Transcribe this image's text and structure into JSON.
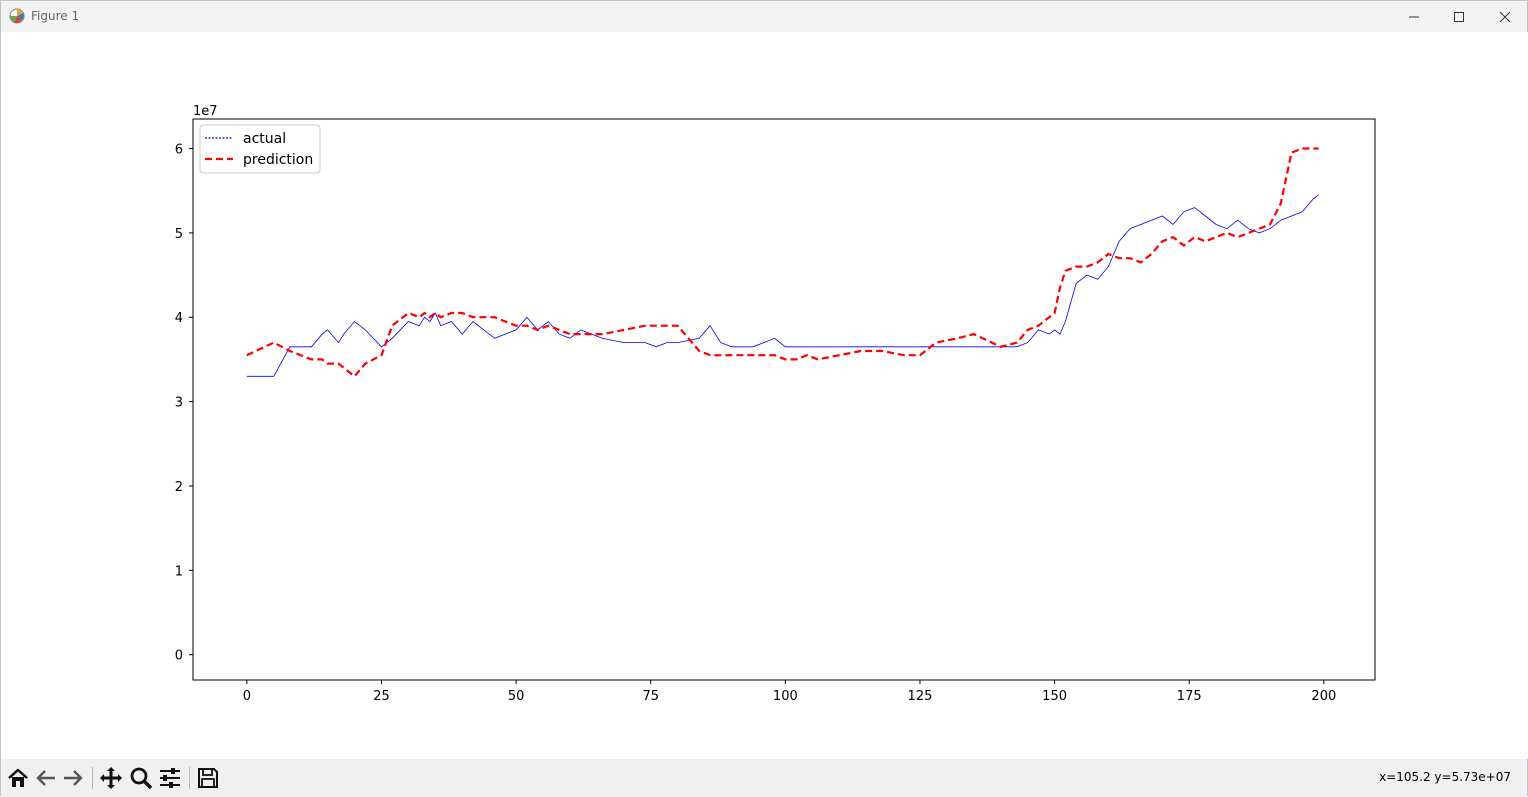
{
  "window": {
    "title": "Figure 1"
  },
  "toolbar": {
    "buttons": [
      "home-icon",
      "back-icon",
      "forward-icon",
      "pan-icon",
      "zoom-icon",
      "configure-subplots-icon",
      "save-icon"
    ],
    "coords": "x=105.2 y=5.73e+07"
  },
  "chart_data": {
    "type": "line",
    "title": "",
    "xlabel": "",
    "ylabel": "",
    "y_offset_label": "1e7",
    "xlim": [
      -10,
      209.5
    ],
    "ylim": [
      -0.3,
      6.35
    ],
    "y_scale": 10000000,
    "xticks": [
      0,
      25,
      50,
      75,
      100,
      125,
      150,
      175,
      200
    ],
    "yticks": [
      0,
      1,
      2,
      3,
      4,
      5,
      6
    ],
    "legend": {
      "placement": "upper-left",
      "entries": [
        "actual",
        "prediction"
      ]
    },
    "grid": false,
    "x": [
      0,
      5,
      8,
      12,
      14,
      15,
      17,
      18,
      20,
      22,
      25,
      27,
      30,
      32,
      33,
      34,
      35,
      36,
      38,
      40,
      42,
      44,
      46,
      48,
      50,
      52,
      54,
      56,
      58,
      60,
      62,
      64,
      66,
      70,
      74,
      76,
      78,
      80,
      84,
      86,
      88,
      90,
      94,
      96,
      98,
      100,
      102,
      104,
      106,
      110,
      114,
      118,
      122,
      125,
      128,
      132,
      135,
      140,
      143,
      145,
      147,
      149,
      150,
      151,
      152,
      154,
      156,
      158,
      160,
      162,
      164,
      166,
      168,
      170,
      172,
      174,
      176,
      178,
      180,
      182,
      184,
      186,
      188,
      190,
      192,
      194,
      196,
      198,
      199
    ],
    "series": [
      {
        "name": "actual",
        "color": "#0000ff",
        "values": [
          3.3,
          3.3,
          3.65,
          3.65,
          3.8,
          3.85,
          3.7,
          3.8,
          3.95,
          3.85,
          3.65,
          3.75,
          3.95,
          3.9,
          4.0,
          3.95,
          4.05,
          3.9,
          3.95,
          3.8,
          3.95,
          3.85,
          3.75,
          3.8,
          3.85,
          4.0,
          3.85,
          3.95,
          3.8,
          3.75,
          3.85,
          3.8,
          3.75,
          3.7,
          3.7,
          3.65,
          3.7,
          3.7,
          3.75,
          3.9,
          3.7,
          3.65,
          3.65,
          3.7,
          3.75,
          3.65,
          3.65,
          3.65,
          3.65,
          3.65,
          3.65,
          3.65,
          3.65,
          3.65,
          3.65,
          3.65,
          3.65,
          3.65,
          3.65,
          3.7,
          3.85,
          3.8,
          3.85,
          3.8,
          3.95,
          4.4,
          4.5,
          4.45,
          4.6,
          4.9,
          5.05,
          5.1,
          5.15,
          5.2,
          5.1,
          5.25,
          5.3,
          5.2,
          5.1,
          5.05,
          5.15,
          5.05,
          5.0,
          5.05,
          5.15,
          5.2,
          5.25,
          5.4,
          5.45
        ]
      },
      {
        "name": "prediction",
        "color": "#ff0000",
        "values": [
          3.55,
          3.7,
          3.6,
          3.5,
          3.5,
          3.45,
          3.45,
          3.4,
          3.3,
          3.45,
          3.55,
          3.9,
          4.05,
          4.0,
          4.05,
          4.0,
          4.05,
          4.0,
          4.05,
          4.05,
          4.0,
          4.0,
          4.0,
          3.95,
          3.9,
          3.9,
          3.85,
          3.9,
          3.85,
          3.8,
          3.8,
          3.8,
          3.8,
          3.85,
          3.9,
          3.9,
          3.9,
          3.9,
          3.6,
          3.55,
          3.55,
          3.55,
          3.55,
          3.55,
          3.55,
          3.5,
          3.5,
          3.55,
          3.5,
          3.55,
          3.6,
          3.6,
          3.55,
          3.55,
          3.7,
          3.75,
          3.8,
          3.65,
          3.7,
          3.85,
          3.9,
          4.0,
          4.05,
          4.35,
          4.55,
          4.6,
          4.6,
          4.65,
          4.75,
          4.7,
          4.7,
          4.65,
          4.75,
          4.9,
          4.95,
          4.85,
          4.95,
          4.9,
          4.95,
          5.0,
          4.95,
          5.0,
          5.05,
          5.1,
          5.35,
          5.95,
          6.0,
          6.0,
          6.0
        ]
      }
    ]
  }
}
